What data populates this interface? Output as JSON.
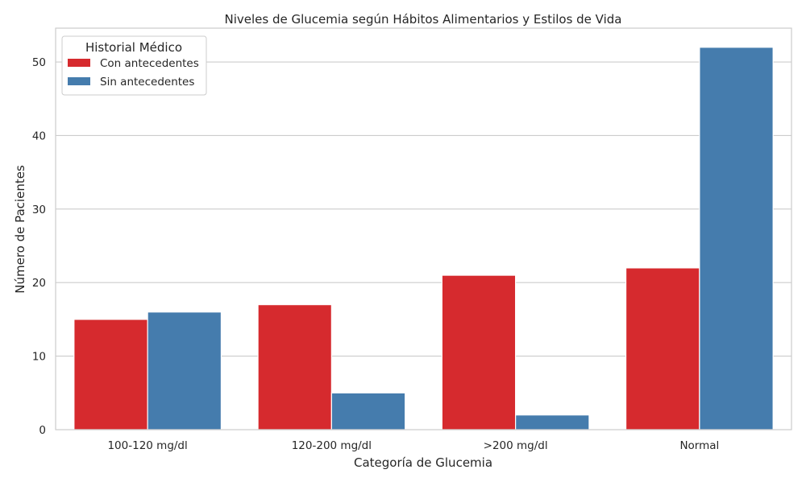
{
  "chart_data": {
    "type": "bar",
    "title": "Niveles de Glucemia según Hábitos Alimentarios y Estilos de Vida",
    "xlabel": "Categoría de Glucemia",
    "ylabel": "Número de Pacientes",
    "categories": [
      "100-120 mg/dl",
      "120-200 mg/dl",
      ">200 mg/dl",
      "Normal"
    ],
    "series": [
      {
        "name": "Con antecedentes",
        "values": [
          15,
          17,
          21,
          22
        ],
        "color": "#d62a2e"
      },
      {
        "name": "Sin antecedentes",
        "values": [
          16,
          5,
          2,
          52
        ],
        "color": "#457cad"
      }
    ],
    "ylim": [
      0,
      54.6
    ],
    "yticks": [
      0,
      10,
      20,
      30,
      40,
      50
    ],
    "grid": "horizontal",
    "legend": {
      "title": "Historial Médico",
      "placement": "top-left"
    }
  }
}
